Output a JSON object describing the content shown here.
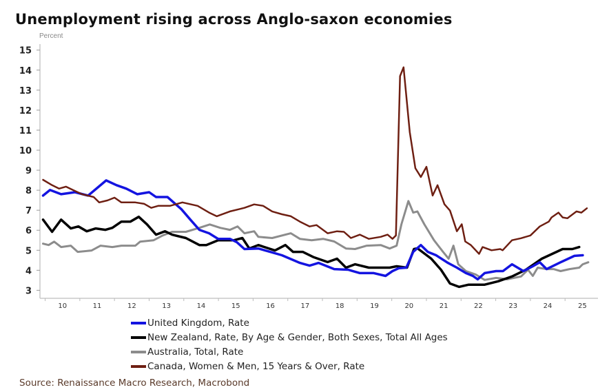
{
  "chart_data": {
    "type": "line",
    "title": "Unemployment rising across Anglo-saxon economies",
    "ylabel": "Percent",
    "xlabel": "",
    "ylim": [
      2.6,
      15.3
    ],
    "xlim": [
      2009.85,
      2025.95
    ],
    "yticks": [
      3,
      4,
      5,
      6,
      7,
      8,
      9,
      10,
      11,
      12,
      13,
      14,
      15
    ],
    "xticks": [
      {
        "label": "10",
        "year": 2010
      },
      {
        "label": "11",
        "year": 2011
      },
      {
        "label": "12",
        "year": 2012
      },
      {
        "label": "13",
        "year": 2013
      },
      {
        "label": "14",
        "year": 2014
      },
      {
        "label": "15",
        "year": 2015
      },
      {
        "label": "16",
        "year": 2016
      },
      {
        "label": "17",
        "year": 2017
      },
      {
        "label": "18",
        "year": 2018
      },
      {
        "label": "19",
        "year": 2019
      },
      {
        "label": "20",
        "year": 2020
      },
      {
        "label": "21",
        "year": 2021
      },
      {
        "label": "22",
        "year": 2022
      },
      {
        "label": "23",
        "year": 2023
      },
      {
        "label": "24",
        "year": 2024
      },
      {
        "label": "25",
        "year": 2025
      }
    ],
    "grid": false,
    "legend_position": "bottom",
    "series": [
      {
        "name": "United Kingdom, Rate",
        "color": "#1414e0",
        "width": 3.5,
        "points": [
          [
            2009.94,
            7.73
          ],
          [
            2010.14,
            8.01
          ],
          [
            2010.46,
            7.8
          ],
          [
            2010.86,
            7.9
          ],
          [
            2011.24,
            7.73
          ],
          [
            2011.76,
            8.49
          ],
          [
            2012.06,
            8.25
          ],
          [
            2012.34,
            8.08
          ],
          [
            2012.66,
            7.8
          ],
          [
            2013.0,
            7.9
          ],
          [
            2013.2,
            7.66
          ],
          [
            2013.53,
            7.66
          ],
          [
            2013.93,
            7.05
          ],
          [
            2014.19,
            6.53
          ],
          [
            2014.45,
            6.02
          ],
          [
            2014.73,
            5.85
          ],
          [
            2014.99,
            5.57
          ],
          [
            2015.33,
            5.57
          ],
          [
            2015.53,
            5.4
          ],
          [
            2015.75,
            5.06
          ],
          [
            2016.15,
            5.09
          ],
          [
            2016.49,
            4.92
          ],
          [
            2016.83,
            4.75
          ],
          [
            2017.35,
            4.37
          ],
          [
            2017.63,
            4.23
          ],
          [
            2017.89,
            4.37
          ],
          [
            2018.34,
            4.06
          ],
          [
            2018.74,
            4.03
          ],
          [
            2019.08,
            3.86
          ],
          [
            2019.48,
            3.86
          ],
          [
            2019.82,
            3.72
          ],
          [
            2020.02,
            3.96
          ],
          [
            2020.2,
            4.1
          ],
          [
            2020.42,
            4.13
          ],
          [
            2020.62,
            4.92
          ],
          [
            2020.84,
            5.26
          ],
          [
            2021.04,
            4.92
          ],
          [
            2021.28,
            4.75
          ],
          [
            2021.62,
            4.37
          ],
          [
            2021.88,
            4.13
          ],
          [
            2022.14,
            3.86
          ],
          [
            2022.34,
            3.72
          ],
          [
            2022.48,
            3.55
          ],
          [
            2022.68,
            3.86
          ],
          [
            2023.01,
            3.96
          ],
          [
            2023.21,
            3.96
          ],
          [
            2023.47,
            4.3
          ],
          [
            2023.8,
            3.96
          ],
          [
            2024.07,
            4.2
          ],
          [
            2024.27,
            4.4
          ],
          [
            2024.47,
            4.06
          ],
          [
            2024.87,
            4.4
          ],
          [
            2025.27,
            4.72
          ],
          [
            2025.51,
            4.75
          ]
        ]
      },
      {
        "name": "New Zealand, Rate, By Age & Gender, Both Sexes, Total All Ages",
        "color": "#000000",
        "width": 3.5,
        "points": [
          [
            2009.94,
            6.53
          ],
          [
            2010.2,
            5.92
          ],
          [
            2010.46,
            6.53
          ],
          [
            2010.74,
            6.09
          ],
          [
            2010.96,
            6.19
          ],
          [
            2011.2,
            5.95
          ],
          [
            2011.46,
            6.09
          ],
          [
            2011.74,
            6.02
          ],
          [
            2011.94,
            6.12
          ],
          [
            2012.2,
            6.43
          ],
          [
            2012.46,
            6.43
          ],
          [
            2012.7,
            6.67
          ],
          [
            2012.94,
            6.29
          ],
          [
            2013.2,
            5.78
          ],
          [
            2013.46,
            5.95
          ],
          [
            2013.66,
            5.78
          ],
          [
            2014.06,
            5.61
          ],
          [
            2014.45,
            5.26
          ],
          [
            2014.65,
            5.26
          ],
          [
            2014.99,
            5.5
          ],
          [
            2015.45,
            5.5
          ],
          [
            2015.69,
            5.61
          ],
          [
            2015.89,
            5.09
          ],
          [
            2016.15,
            5.26
          ],
          [
            2016.63,
            4.99
          ],
          [
            2016.93,
            5.26
          ],
          [
            2017.15,
            4.92
          ],
          [
            2017.43,
            4.92
          ],
          [
            2017.75,
            4.65
          ],
          [
            2018.15,
            4.41
          ],
          [
            2018.42,
            4.58
          ],
          [
            2018.68,
            4.13
          ],
          [
            2018.94,
            4.3
          ],
          [
            2019.34,
            4.13
          ],
          [
            2019.94,
            4.13
          ],
          [
            2020.14,
            4.2
          ],
          [
            2020.44,
            4.13
          ],
          [
            2020.64,
            5.06
          ],
          [
            2020.74,
            5.1
          ],
          [
            2021.14,
            4.58
          ],
          [
            2021.42,
            4.03
          ],
          [
            2021.68,
            3.34
          ],
          [
            2021.94,
            3.17
          ],
          [
            2022.22,
            3.28
          ],
          [
            2022.68,
            3.28
          ],
          [
            2023.07,
            3.45
          ],
          [
            2023.47,
            3.69
          ],
          [
            2023.87,
            4.03
          ],
          [
            2024.33,
            4.58
          ],
          [
            2024.93,
            5.06
          ],
          [
            2025.21,
            5.06
          ],
          [
            2025.41,
            5.16
          ]
        ]
      },
      {
        "name": "Australia, Total, Rate",
        "color": "#8c8c8c",
        "width": 3,
        "points": [
          [
            2009.94,
            5.33
          ],
          [
            2010.1,
            5.26
          ],
          [
            2010.26,
            5.43
          ],
          [
            2010.46,
            5.16
          ],
          [
            2010.74,
            5.23
          ],
          [
            2010.94,
            4.92
          ],
          [
            2011.34,
            4.99
          ],
          [
            2011.6,
            5.23
          ],
          [
            2011.94,
            5.16
          ],
          [
            2012.2,
            5.23
          ],
          [
            2012.6,
            5.23
          ],
          [
            2012.74,
            5.43
          ],
          [
            2013.13,
            5.5
          ],
          [
            2013.39,
            5.74
          ],
          [
            2013.66,
            5.92
          ],
          [
            2014.06,
            5.92
          ],
          [
            2014.45,
            6.12
          ],
          [
            2014.75,
            6.29
          ],
          [
            2015.05,
            6.12
          ],
          [
            2015.33,
            6.02
          ],
          [
            2015.55,
            6.19
          ],
          [
            2015.75,
            5.85
          ],
          [
            2016.03,
            5.95
          ],
          [
            2016.15,
            5.67
          ],
          [
            2016.55,
            5.61
          ],
          [
            2017.09,
            5.85
          ],
          [
            2017.35,
            5.57
          ],
          [
            2017.69,
            5.5
          ],
          [
            2018.02,
            5.57
          ],
          [
            2018.34,
            5.44
          ],
          [
            2018.68,
            5.09
          ],
          [
            2018.94,
            5.06
          ],
          [
            2019.28,
            5.23
          ],
          [
            2019.68,
            5.26
          ],
          [
            2019.94,
            5.09
          ],
          [
            2020.14,
            5.23
          ],
          [
            2020.28,
            6.3
          ],
          [
            2020.48,
            7.46
          ],
          [
            2020.62,
            6.88
          ],
          [
            2020.74,
            6.94
          ],
          [
            2020.94,
            6.3
          ],
          [
            2021.22,
            5.5
          ],
          [
            2021.48,
            4.92
          ],
          [
            2021.64,
            4.58
          ],
          [
            2021.78,
            5.23
          ],
          [
            2021.92,
            4.3
          ],
          [
            2022.14,
            3.96
          ],
          [
            2022.42,
            3.79
          ],
          [
            2022.68,
            3.52
          ],
          [
            2023.01,
            3.62
          ],
          [
            2023.33,
            3.55
          ],
          [
            2023.73,
            3.69
          ],
          [
            2023.93,
            4.03
          ],
          [
            2024.07,
            3.72
          ],
          [
            2024.21,
            4.13
          ],
          [
            2024.47,
            4.06
          ],
          [
            2024.67,
            4.06
          ],
          [
            2024.87,
            3.96
          ],
          [
            2025.13,
            4.06
          ],
          [
            2025.41,
            4.13
          ],
          [
            2025.51,
            4.3
          ],
          [
            2025.67,
            4.4
          ]
        ]
      },
      {
        "name": "Canada, Women & Men, 15 Years & Over, Rate",
        "color": "#6e1f12",
        "width": 2.5,
        "points": [
          [
            2009.94,
            8.52
          ],
          [
            2010.2,
            8.25
          ],
          [
            2010.4,
            8.08
          ],
          [
            2010.6,
            8.18
          ],
          [
            2010.8,
            8.01
          ],
          [
            2011.06,
            7.8
          ],
          [
            2011.4,
            7.66
          ],
          [
            2011.56,
            7.39
          ],
          [
            2011.8,
            7.49
          ],
          [
            2012.0,
            7.63
          ],
          [
            2012.2,
            7.39
          ],
          [
            2012.6,
            7.39
          ],
          [
            2012.86,
            7.32
          ],
          [
            2013.06,
            7.12
          ],
          [
            2013.26,
            7.22
          ],
          [
            2013.6,
            7.22
          ],
          [
            2013.96,
            7.39
          ],
          [
            2014.4,
            7.22
          ],
          [
            2014.73,
            6.88
          ],
          [
            2014.95,
            6.7
          ],
          [
            2015.33,
            6.94
          ],
          [
            2015.59,
            7.05
          ],
          [
            2015.75,
            7.12
          ],
          [
            2016.03,
            7.29
          ],
          [
            2016.29,
            7.22
          ],
          [
            2016.55,
            6.94
          ],
          [
            2016.83,
            6.8
          ],
          [
            2017.09,
            6.7
          ],
          [
            2017.35,
            6.43
          ],
          [
            2017.63,
            6.19
          ],
          [
            2017.83,
            6.26
          ],
          [
            2018.15,
            5.85
          ],
          [
            2018.42,
            5.95
          ],
          [
            2018.62,
            5.92
          ],
          [
            2018.82,
            5.61
          ],
          [
            2019.08,
            5.78
          ],
          [
            2019.34,
            5.57
          ],
          [
            2019.68,
            5.67
          ],
          [
            2019.88,
            5.78
          ],
          [
            2020.02,
            5.57
          ],
          [
            2020.12,
            5.74
          ],
          [
            2020.24,
            13.7
          ],
          [
            2020.34,
            14.14
          ],
          [
            2020.52,
            10.9
          ],
          [
            2020.68,
            9.1
          ],
          [
            2020.84,
            8.66
          ],
          [
            2021.0,
            9.17
          ],
          [
            2021.18,
            7.73
          ],
          [
            2021.32,
            8.25
          ],
          [
            2021.52,
            7.3
          ],
          [
            2021.68,
            6.98
          ],
          [
            2021.88,
            5.95
          ],
          [
            2022.02,
            6.3
          ],
          [
            2022.12,
            5.44
          ],
          [
            2022.28,
            5.26
          ],
          [
            2022.52,
            4.82
          ],
          [
            2022.62,
            5.16
          ],
          [
            2022.88,
            5.0
          ],
          [
            2023.13,
            5.06
          ],
          [
            2023.2,
            5.0
          ],
          [
            2023.47,
            5.5
          ],
          [
            2023.73,
            5.6
          ],
          [
            2024.0,
            5.74
          ],
          [
            2024.27,
            6.19
          ],
          [
            2024.53,
            6.43
          ],
          [
            2024.61,
            6.64
          ],
          [
            2024.81,
            6.88
          ],
          [
            2024.93,
            6.64
          ],
          [
            2025.07,
            6.6
          ],
          [
            2025.33,
            6.94
          ],
          [
            2025.47,
            6.88
          ],
          [
            2025.63,
            7.1
          ]
        ]
      }
    ]
  },
  "source": "Source: Renaissance Macro Research, Macrobond"
}
